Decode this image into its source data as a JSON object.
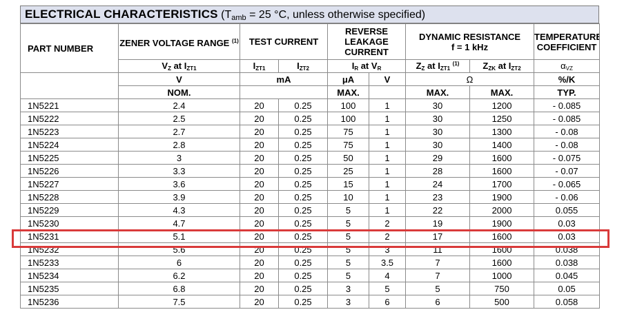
{
  "title": {
    "main": "ELECTRICAL CHARACTERISTICS",
    "cond_open": " (T",
    "cond_sub": "amb",
    "cond_rest": " = 25 °C, unless otherwise specified)"
  },
  "headers": {
    "part_number": "PART NUMBER",
    "zener_voltage_range": "ZENER VOLTAGE RANGE",
    "zener_note": "(1)",
    "test_current": "TEST CURRENT",
    "reverse_leakage": "REVERSE LEAKAGE CURRENT",
    "dynamic_resistance": "DYNAMIC RESISTANCE",
    "dynamic_freq": "f = 1 kHz",
    "temperature_coefficient": "TEMPERATURE COEFFICIENT",
    "vz_main": "V",
    "vz_sub": "Z",
    "vz_at": " at I",
    "vz_at_sub": "ZT1",
    "izt1_main": "I",
    "izt1_sub": "ZT1",
    "izt2_main": "I",
    "izt2_sub": "ZT2",
    "ir_main": "I",
    "ir_sub": "R",
    "ir_at": " at V",
    "ir_at_sub": "R",
    "zz_main": "Z",
    "zz_sub": "Z",
    "zz_at": " at I",
    "zz_at_sub": "ZT1",
    "zz_note": "(1)",
    "zzk_main": "Z",
    "zzk_sub": "ZK",
    "zzk_at": " at I",
    "zzk_at_sub": "ZT2",
    "alpha_main": "α",
    "alpha_sub": "VZ",
    "unit_v": "V",
    "unit_ma": "mA",
    "unit_ua": "μA",
    "unit_v2": "V",
    "unit_ohm": "Ω",
    "unit_pct": "%/K",
    "nom": "NOM.",
    "max1": "MAX.",
    "max2": "MAX.",
    "max3": "MAX.",
    "typ": "TYP."
  },
  "rows": [
    [
      "1N5221",
      "2.4",
      "20",
      "0.25",
      "100",
      "1",
      "30",
      "1200",
      "- 0.085"
    ],
    [
      "1N5222",
      "2.5",
      "20",
      "0.25",
      "100",
      "1",
      "30",
      "1250",
      "- 0.085"
    ],
    [
      "1N5223",
      "2.7",
      "20",
      "0.25",
      "75",
      "1",
      "30",
      "1300",
      "- 0.08"
    ],
    [
      "1N5224",
      "2.8",
      "20",
      "0.25",
      "75",
      "1",
      "30",
      "1400",
      "- 0.08"
    ],
    [
      "1N5225",
      "3",
      "20",
      "0.25",
      "50",
      "1",
      "29",
      "1600",
      "- 0.075"
    ],
    [
      "1N5226",
      "3.3",
      "20",
      "0.25",
      "25",
      "1",
      "28",
      "1600",
      "- 0.07"
    ],
    [
      "1N5227",
      "3.6",
      "20",
      "0.25",
      "15",
      "1",
      "24",
      "1700",
      "- 0.065"
    ],
    [
      "1N5228",
      "3.9",
      "20",
      "0.25",
      "10",
      "1",
      "23",
      "1900",
      "- 0.06"
    ],
    [
      "1N5229",
      "4.3",
      "20",
      "0.25",
      "5",
      "1",
      "22",
      "2000",
      "0.055"
    ],
    [
      "1N5230",
      "4.7",
      "20",
      "0.25",
      "5",
      "2",
      "19",
      "1900",
      "0.03"
    ],
    [
      "1N5231",
      "5.1",
      "20",
      "0.25",
      "5",
      "2",
      "17",
      "1600",
      "0.03"
    ],
    [
      "1N5232",
      "5.6",
      "20",
      "0.25",
      "5",
      "3",
      "11",
      "1600",
      "0.038"
    ],
    [
      "1N5233",
      "6",
      "20",
      "0.25",
      "5",
      "3.5",
      "7",
      "1600",
      "0.038"
    ],
    [
      "1N5234",
      "6.2",
      "20",
      "0.25",
      "5",
      "4",
      "7",
      "1000",
      "0.045"
    ],
    [
      "1N5235",
      "6.8",
      "20",
      "0.25",
      "3",
      "5",
      "5",
      "750",
      "0.05"
    ],
    [
      "1N5236",
      "7.5",
      "20",
      "0.25",
      "3",
      "6",
      "6",
      "500",
      "0.058"
    ]
  ],
  "highlight": {
    "part": "1N5231",
    "color": "#d93a3a"
  },
  "colors": {
    "title_bg": "#dde1ee",
    "border": "#8a8a8a"
  }
}
